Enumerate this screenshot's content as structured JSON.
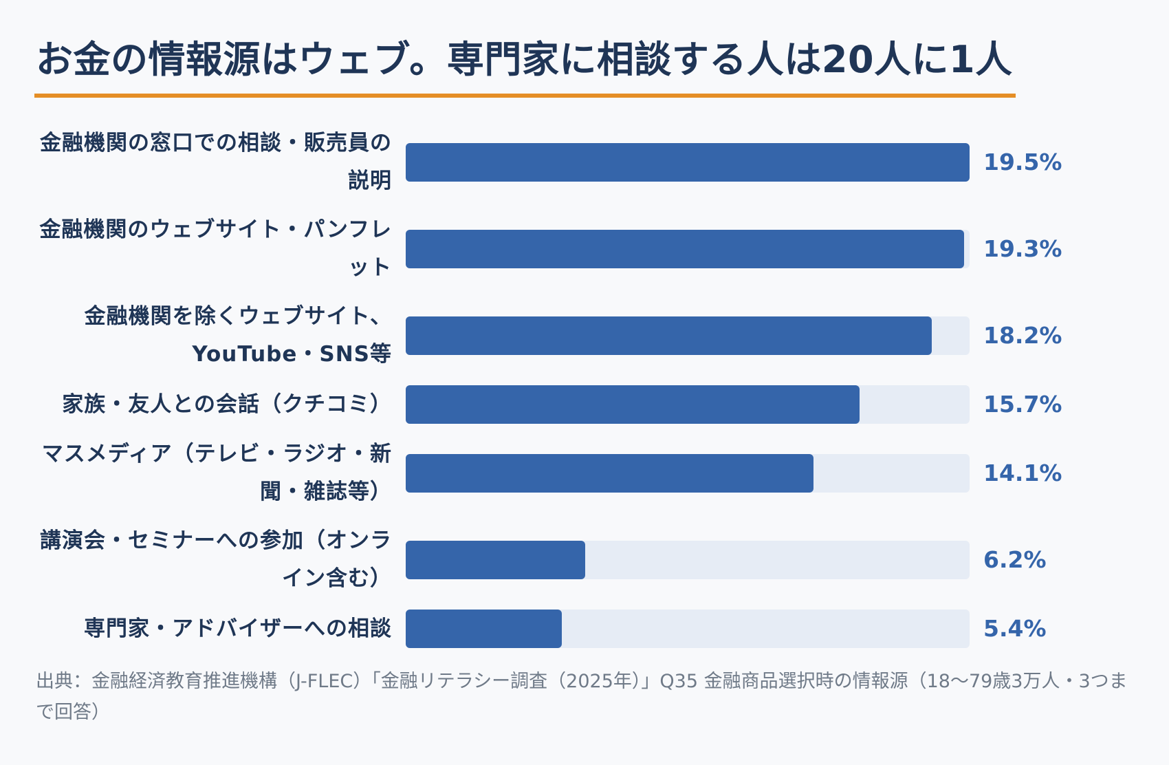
{
  "colors": {
    "background": "#f8f9fb",
    "title": "#1f3556",
    "accent_rule": "#e58e26",
    "bar": "#3565aa",
    "track": "#e6ecf5",
    "value": "#3565aa",
    "source": "#6f7a88"
  },
  "chart_data": {
    "type": "bar",
    "orientation": "horizontal",
    "title": "お金の情報源はウェブ。専門家に相談する人は20人に1人",
    "categories": [
      "金融機関の窓口での相談・販売員の説明",
      "金融機関のウェブサイト・パンフレット",
      "金融機関を除くウェブサイト、YouTube・SNS等",
      "家族・友人との会話（クチコミ）",
      "マスメディア（テレビ・ラジオ・新聞・雑誌等）",
      "講演会・セミナーへの参加（オンライン含む）",
      "専門家・アドバイザーへの相談"
    ],
    "values": [
      19.5,
      19.3,
      18.2,
      15.7,
      14.1,
      6.2,
      5.4
    ],
    "value_labels": [
      "19.5%",
      "19.3%",
      "18.2%",
      "15.7%",
      "14.1%",
      "6.2%",
      "5.4%"
    ],
    "xlim": [
      0,
      19.5
    ],
    "unit": "%",
    "grid": false,
    "legend": "none"
  },
  "source": "出典：金融経済教育推進機構（J-FLEC）「金融リテラシー調査（2025年）」Q35 金融商品選択時の情報源（18〜79歳3万人・3つまで回答）"
}
